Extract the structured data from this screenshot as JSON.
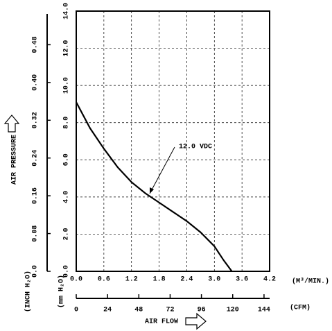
{
  "chart_data": {
    "type": "line",
    "x_title": "AIR FLOW",
    "y_title": "AIR PRESSURE",
    "xlabel": "(M³/MIN.)",
    "x2label": "(CFM)",
    "ylabel": "(mm H₂O)",
    "y2label": "(INCH H₂O)",
    "x": [
      0,
      0.3,
      0.6,
      0.9,
      1.2,
      1.5,
      1.8,
      2.1,
      2.4,
      2.7,
      3.0,
      3.2,
      3.38
    ],
    "series": [
      {
        "name": "12.0 VDC",
        "color": "#000000",
        "values": [
          9.1,
          7.7,
          6.6,
          5.6,
          4.8,
          4.2,
          3.7,
          3.2,
          2.7,
          2.1,
          1.35,
          0.6,
          0
        ]
      }
    ],
    "xlim": [
      0,
      4.2
    ],
    "xticks": [
      {
        "value": 0,
        "label": "0.0"
      },
      0.6,
      1.2,
      1.8,
      2.4,
      {
        "value": 3,
        "label": "3.0"
      },
      3.6,
      4.2
    ],
    "x2lim": [
      0,
      148.3
    ],
    "x2ticks": [
      0,
      24,
      48,
      72,
      96,
      120,
      144
    ],
    "ylim": [
      0,
      14
    ],
    "yticks": [
      {
        "value": 0,
        "label": "0.0"
      },
      {
        "value": 2,
        "label": "2.0"
      },
      {
        "value": 4,
        "label": "4.0"
      },
      {
        "value": 6,
        "label": "6.0"
      },
      {
        "value": 8,
        "label": "8.0"
      },
      {
        "value": 10,
        "label": "10.0"
      },
      {
        "value": 12,
        "label": "12.0"
      },
      {
        "value": 14,
        "label": "14.0"
      }
    ],
    "y2lim": [
      0,
      0.5512
    ],
    "y2ticks": [
      {
        "value": 0,
        "label": "0.0"
      },
      0.08,
      0.16,
      0.24,
      0.32,
      {
        "value": 0.4,
        "label": "0.40"
      },
      0.48
    ],
    "grid": true
  }
}
